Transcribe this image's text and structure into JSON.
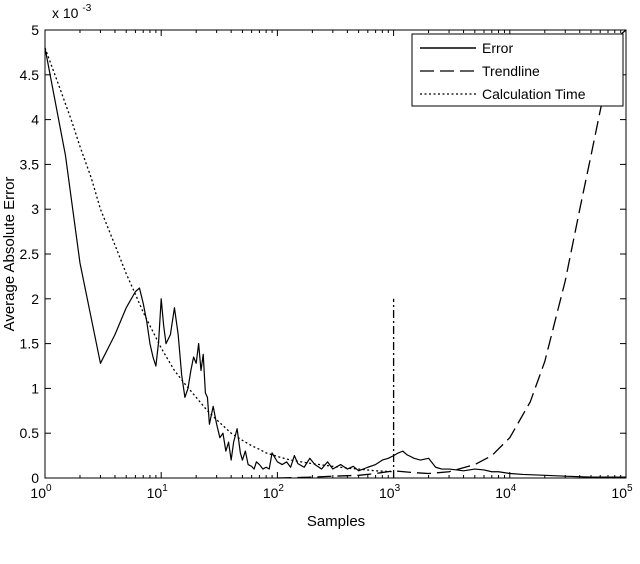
{
  "chart_data": {
    "type": "line",
    "xlabel": "Samples",
    "ylabel": "Average Absolute Error",
    "x_scale": "log",
    "xlim": [
      1,
      100000
    ],
    "ylim": [
      0,
      0.005
    ],
    "y_multiplier_label": "x 10",
    "y_multiplier_exponent": "-3",
    "x_ticks": [
      {
        "value": 1,
        "base": "10",
        "exp": "0"
      },
      {
        "value": 10,
        "base": "10",
        "exp": "1"
      },
      {
        "value": 100,
        "base": "10",
        "exp": "2"
      },
      {
        "value": 1000,
        "base": "10",
        "exp": "3"
      },
      {
        "value": 10000,
        "base": "10",
        "exp": "4"
      },
      {
        "value": 100000,
        "base": "10",
        "exp": "5"
      }
    ],
    "y_ticks": [
      {
        "value": 0,
        "label": "0"
      },
      {
        "value": 0.0005,
        "label": "0.5"
      },
      {
        "value": 0.001,
        "label": "1"
      },
      {
        "value": 0.0015,
        "label": "1.5"
      },
      {
        "value": 0.002,
        "label": "2"
      },
      {
        "value": 0.0025,
        "label": "2.5"
      },
      {
        "value": 0.003,
        "label": "3"
      },
      {
        "value": 0.0035,
        "label": "3.5"
      },
      {
        "value": 0.004,
        "label": "4"
      },
      {
        "value": 0.0045,
        "label": "4.5"
      },
      {
        "value": 0.005,
        "label": "5"
      }
    ],
    "legend_position": "top-right",
    "grid": false,
    "series": [
      {
        "name": "Error",
        "style": "solid",
        "color": "#000000",
        "x": [
          1,
          1.5,
          2,
          3,
          4,
          5,
          6,
          6.5,
          7,
          7.5,
          8,
          8.5,
          9,
          9.5,
          10,
          10.5,
          11,
          12,
          13,
          14,
          15,
          16,
          17,
          18,
          19,
          20,
          21,
          22,
          23,
          24,
          25,
          26,
          28,
          30,
          32,
          34,
          36,
          38,
          40,
          42,
          45,
          48,
          50,
          53,
          56,
          60,
          63,
          66,
          70,
          75,
          80,
          85,
          90,
          100,
          110,
          120,
          130,
          140,
          150,
          170,
          190,
          210,
          240,
          270,
          300,
          350,
          400,
          450,
          500,
          600,
          700,
          800,
          900,
          1000,
          1100,
          1200,
          1300,
          1400,
          1500,
          1700,
          2000,
          2300,
          2600,
          3000,
          3500,
          4000,
          5000,
          6000,
          7000,
          8000,
          10000,
          13000,
          20000,
          30000,
          50000,
          70000,
          100000
        ],
        "y": [
          0.0048,
          0.0036,
          0.0024,
          0.00128,
          0.0016,
          0.0019,
          0.00208,
          0.00212,
          0.00195,
          0.00175,
          0.0015,
          0.00135,
          0.00125,
          0.00152,
          0.002,
          0.0017,
          0.0015,
          0.0016,
          0.0019,
          0.0016,
          0.00115,
          0.0009,
          0.001,
          0.0012,
          0.00135,
          0.00128,
          0.0015,
          0.0012,
          0.00138,
          0.00095,
          0.0009,
          0.0006,
          0.0008,
          0.0006,
          0.00045,
          0.0005,
          0.0003,
          0.0004,
          0.0002,
          0.0004,
          0.00055,
          0.00028,
          0.0002,
          0.0003,
          0.00015,
          0.00013,
          0.0001,
          0.00018,
          0.00015,
          0.0001,
          0.00012,
          0.0001,
          0.00028,
          0.00018,
          0.00015,
          0.00018,
          0.00012,
          0.00025,
          0.00016,
          0.00012,
          0.00022,
          0.00015,
          0.0001,
          0.00018,
          0.0001,
          0.00015,
          0.0001,
          0.00013,
          8e-05,
          0.00012,
          0.00015,
          0.0002,
          0.00022,
          0.00025,
          0.00028,
          0.0003,
          0.00026,
          0.00024,
          0.00022,
          0.0002,
          0.00022,
          0.00012,
          0.0001,
          0.0001,
          9e-05,
          8e-05,
          0.0001,
          9e-05,
          7e-05,
          7e-05,
          5e-05,
          4e-05,
          3e-05,
          2e-05,
          1e-05,
          1e-05,
          1e-05
        ]
      },
      {
        "name": "Trendline",
        "style": "dashed",
        "color": "#000000",
        "x": [
          100,
          200,
          300,
          500,
          700,
          1000,
          1500,
          2000,
          3000,
          5000,
          7000,
          10000,
          15000,
          20000,
          30000,
          40000,
          50000,
          60000,
          70000,
          80000,
          90000,
          100000
        ],
        "y": [
          0,
          1e-05,
          2e-05,
          3e-05,
          5e-05,
          8e-05,
          6e-05,
          5e-05,
          7e-05,
          0.00015,
          0.00025,
          0.00045,
          0.00085,
          0.0013,
          0.0022,
          0.003,
          0.0036,
          0.0041,
          0.0045,
          0.0048,
          0.00495,
          0.005
        ]
      },
      {
        "name": "Calculation Time",
        "style": "dotted",
        "color": "#000000",
        "x": [
          1,
          1.3,
          1.7,
          2,
          2.5,
          3,
          4,
          5,
          6,
          7,
          8,
          10,
          13,
          16,
          20,
          25,
          30,
          40,
          50,
          60,
          70,
          80,
          100,
          130,
          160,
          200,
          300,
          400,
          500,
          700,
          1000
        ],
        "y": [
          0.0048,
          0.0044,
          0.00398,
          0.0037,
          0.00335,
          0.003,
          0.0026,
          0.00228,
          0.00205,
          0.00185,
          0.0017,
          0.00145,
          0.0012,
          0.00105,
          0.0009,
          0.00075,
          0.00065,
          0.0005,
          0.00042,
          0.00036,
          0.00032,
          0.00028,
          0.00024,
          0.0002,
          0.00018,
          0.00016,
          0.00013,
          0.00011,
          0.0001,
          8e-05,
          7e-05
        ]
      }
    ],
    "annotations": [
      {
        "type": "vertical-dashdot-line",
        "x": 1000,
        "y_from": 0,
        "y_to": 0.002
      }
    ]
  }
}
